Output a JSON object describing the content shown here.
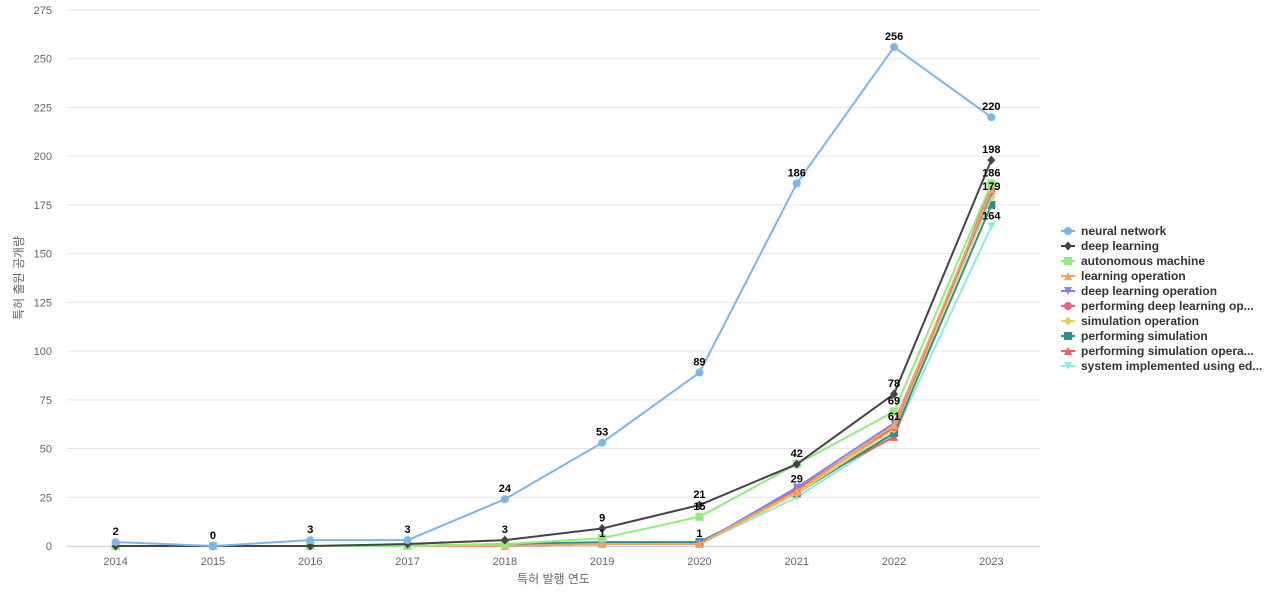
{
  "chart_data": {
    "type": "line",
    "title": "",
    "xlabel": "특허 발행 연도",
    "ylabel": "특허 출원 공개량",
    "ylim": [
      0,
      275
    ],
    "yticks": [
      0,
      25,
      50,
      75,
      100,
      125,
      150,
      175,
      200,
      225,
      250,
      275
    ],
    "grid": true,
    "legend_position": "right",
    "categories": [
      "2014",
      "2015",
      "2016",
      "2017",
      "2018",
      "2019",
      "2020",
      "2021",
      "2022",
      "2023"
    ],
    "series": [
      {
        "name": "neural network",
        "color": "#7cb5ec",
        "marker": "circle",
        "values": [
          2,
          0,
          3,
          3,
          24,
          53,
          89,
          186,
          256,
          220
        ],
        "labels": [
          true,
          true,
          true,
          true,
          true,
          true,
          true,
          true,
          true,
          true
        ]
      },
      {
        "name": "deep learning",
        "color": "#434348",
        "marker": "diamond",
        "values": [
          0,
          0,
          0,
          1,
          3,
          9,
          21,
          42,
          78,
          198
        ],
        "labels": [
          false,
          false,
          false,
          false,
          true,
          true,
          true,
          true,
          true,
          true
        ]
      },
      {
        "name": "autonomous machine",
        "color": "#90ed7d",
        "marker": "square",
        "values": [
          0,
          0,
          0,
          0,
          1,
          4,
          15,
          42,
          69,
          186
        ],
        "labels": [
          false,
          false,
          false,
          false,
          false,
          false,
          true,
          false,
          true,
          true
        ]
      },
      {
        "name": "learning operation",
        "color": "#f7a35c",
        "marker": "triangle",
        "values": [
          0,
          0,
          0,
          0,
          0,
          1,
          1,
          28,
          62,
          183
        ],
        "labels": [
          false,
          false,
          false,
          false,
          false,
          true,
          false,
          false,
          false,
          false
        ]
      },
      {
        "name": "deep learning operation",
        "color": "#8085e9",
        "marker": "triangle-down",
        "values": [
          0,
          0,
          0,
          0,
          0,
          1,
          1,
          30,
          63,
          181
        ],
        "labels": [
          false,
          false,
          false,
          false,
          false,
          false,
          false,
          false,
          false,
          false
        ]
      },
      {
        "name": "performing deep learning op...",
        "color": "#f15c80",
        "marker": "circle",
        "values": [
          0,
          0,
          0,
          0,
          0,
          1,
          1,
          29,
          61,
          182
        ],
        "labels": [
          false,
          false,
          false,
          false,
          false,
          false,
          false,
          false,
          true,
          false
        ]
      },
      {
        "name": "simulation operation",
        "color": "#e4d354",
        "marker": "diamond",
        "values": [
          0,
          0,
          0,
          0,
          0,
          1,
          1,
          27,
          60,
          179
        ],
        "labels": [
          false,
          false,
          false,
          false,
          false,
          false,
          false,
          false,
          false,
          true
        ]
      },
      {
        "name": "performing simulation",
        "color": "#2b908f",
        "marker": "square",
        "values": [
          0,
          0,
          0,
          0,
          1,
          2,
          2,
          27,
          58,
          175
        ],
        "labels": [
          false,
          false,
          false,
          false,
          false,
          false,
          false,
          false,
          false,
          false
        ]
      },
      {
        "name": "performing simulation opera...",
        "color": "#f45b5b",
        "marker": "triangle",
        "values": [
          0,
          0,
          0,
          0,
          0,
          1,
          1,
          29,
          56,
          185
        ],
        "labels": [
          false,
          false,
          false,
          false,
          false,
          false,
          true,
          true,
          false,
          false
        ]
      },
      {
        "name": "system implemented using ed...",
        "color": "#91e8e1",
        "marker": "triangle-down",
        "values": [
          0,
          0,
          0,
          0,
          0,
          1,
          1,
          25,
          57,
          164
        ],
        "labels": [
          false,
          false,
          false,
          false,
          false,
          false,
          false,
          false,
          false,
          true
        ]
      }
    ]
  }
}
